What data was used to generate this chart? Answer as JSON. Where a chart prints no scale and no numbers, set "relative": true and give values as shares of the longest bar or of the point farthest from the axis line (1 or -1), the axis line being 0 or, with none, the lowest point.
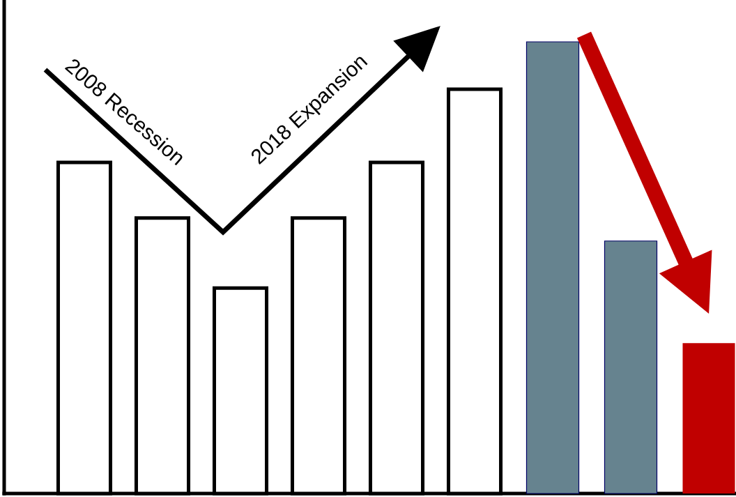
{
  "chart_data": {
    "type": "bar",
    "relative": true,
    "categories": [
      null,
      null,
      null,
      null,
      null,
      null,
      null,
      null,
      null
    ],
    "values": [
      0.733,
      0.61,
      0.455,
      0.61,
      0.733,
      0.895,
      1,
      0.559,
      0.333
    ],
    "colors": [
      "#ffffff",
      "#ffffff",
      "#ffffff",
      "#ffffff",
      "#ffffff",
      "#ffffff",
      "#66838f",
      "#66838f",
      "#c00000"
    ],
    "annotations": [
      "2008 Recession",
      "2018 Expansion"
    ]
  }
}
